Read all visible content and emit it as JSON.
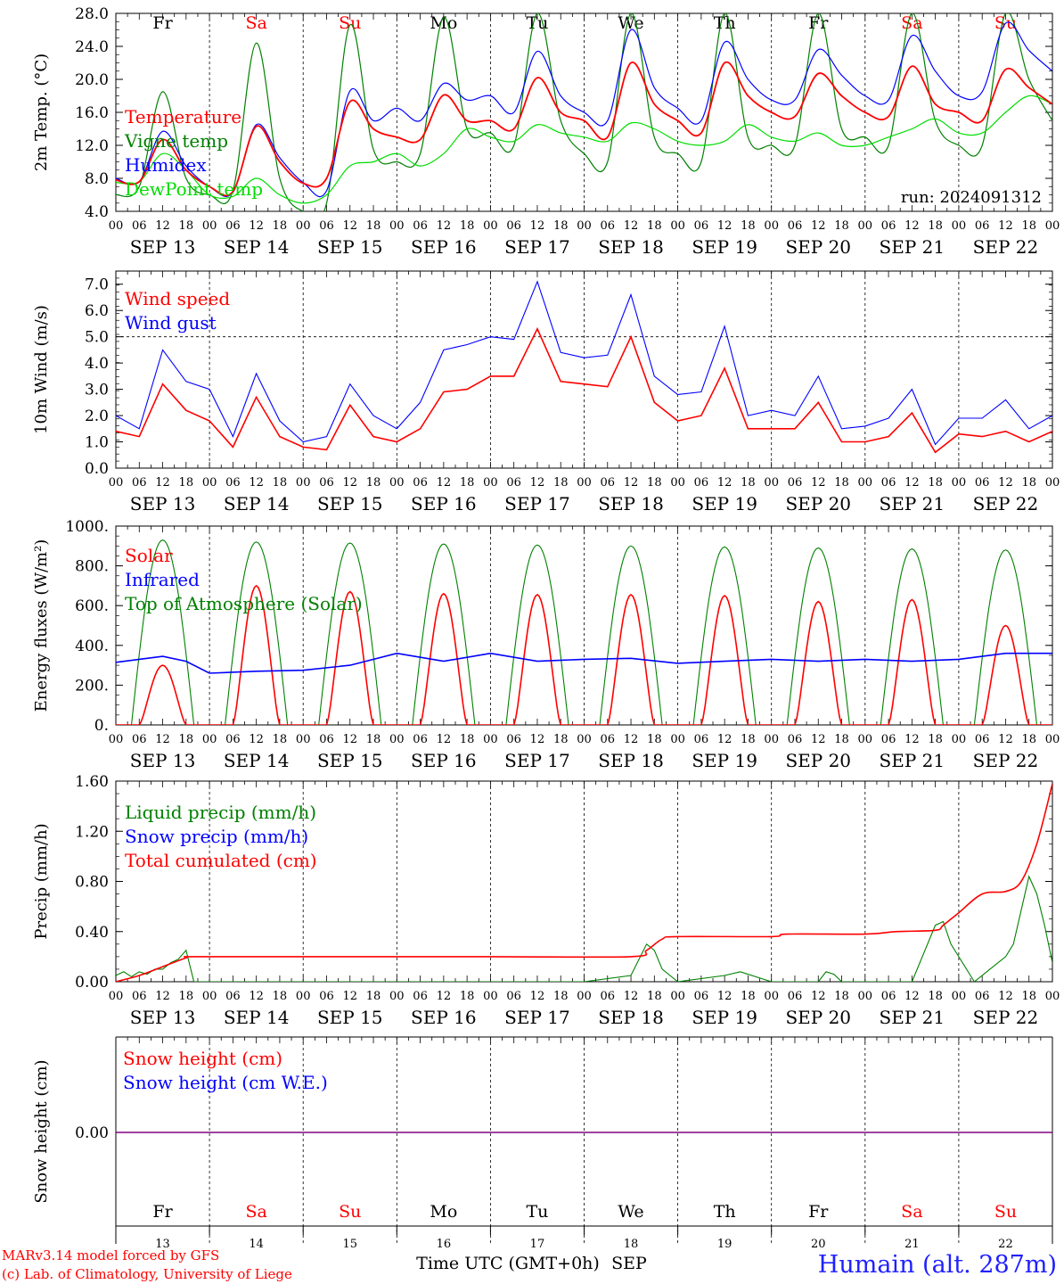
{
  "colors": {
    "red": "#ff0000",
    "green": "#008000",
    "blue": "#0000ff",
    "lightgreen": "#00dd00",
    "purple": "#800080",
    "weekend": "#ff0000",
    "weekday": "#000000",
    "footer_red": "#ff0000",
    "station_blue": "#2020ff"
  },
  "days": [
    {
      "short": "Fr",
      "date_label": "SEP 13",
      "num": "13",
      "weekend": false
    },
    {
      "short": "Sa",
      "date_label": "SEP 14",
      "num": "14",
      "weekend": true
    },
    {
      "short": "Su",
      "date_label": "SEP 15",
      "num": "15",
      "weekend": true
    },
    {
      "short": "Mo",
      "date_label": "SEP 16",
      "num": "16",
      "weekend": false
    },
    {
      "short": "Tu",
      "date_label": "SEP 17",
      "num": "17",
      "weekend": false
    },
    {
      "short": "We",
      "date_label": "SEP 18",
      "num": "18",
      "weekend": false
    },
    {
      "short": "Th",
      "date_label": "SEP 19",
      "num": "19",
      "weekend": false
    },
    {
      "short": "Fr",
      "date_label": "SEP 20",
      "num": "20",
      "weekend": false
    },
    {
      "short": "Sa",
      "date_label": "SEP 21",
      "num": "21",
      "weekend": true
    },
    {
      "short": "Su",
      "date_label": "SEP 22",
      "num": "22",
      "weekend": true
    }
  ],
  "hour_ticks": [
    "00",
    "06",
    "12",
    "18"
  ],
  "hour_ticks_end": "00",
  "run_label": "run: 2024091312",
  "footer": {
    "model": "MARv3.14 model forced by GFS",
    "lab": "(c) Lab. of Climatology, University of Liege",
    "xlabel": "Time UTC (GMT+0h)",
    "month": "SEP",
    "station": "Humain (alt. 287m)"
  },
  "chart_data": [
    {
      "type": "line",
      "name": "temperature",
      "ylabel": "2m Temp. (°C)",
      "ylim": [
        4,
        28
      ],
      "yticks": [
        "4.0",
        "8.0",
        "12.0",
        "16.0",
        "20.0",
        "24.0",
        "28.0"
      ],
      "x_hours": [
        0,
        6,
        12,
        18,
        24,
        30,
        36,
        42,
        48,
        54,
        60,
        66,
        72,
        78,
        84,
        90,
        96,
        102,
        108,
        114,
        120,
        126,
        132,
        138,
        144,
        150,
        156,
        162,
        168,
        174,
        180,
        186,
        192,
        198,
        204,
        210,
        216,
        222,
        228,
        234,
        240
      ],
      "series": [
        {
          "name": "Temperature",
          "color": "red",
          "values": [
            7.8,
            7.6,
            12.7,
            9.0,
            7.0,
            6.4,
            14.3,
            10.0,
            7.4,
            8.0,
            17.3,
            14.0,
            13.0,
            12.7,
            18.1,
            15.0,
            15.0,
            14.0,
            20.2,
            16.0,
            15.0,
            13.0,
            22.0,
            17.0,
            15.0,
            13.5,
            22.0,
            18.0,
            16.0,
            15.5,
            20.7,
            18.0,
            16.0,
            15.5,
            21.6,
            17.0,
            16.0,
            15.0,
            21.2,
            19.0,
            17.0
          ]
        },
        {
          "name": "Vigne temp",
          "color": "green",
          "values": [
            6.0,
            7.0,
            18.5,
            8.0,
            6.0,
            6.5,
            24.4,
            8.0,
            4.0,
            5.0,
            26.6,
            11.5,
            10.0,
            11.0,
            27.5,
            14.0,
            13.5,
            12.0,
            28.0,
            15.0,
            11.0,
            10.0,
            28.0,
            13.0,
            11.0,
            10.0,
            28.0,
            13.0,
            12.0,
            12.0,
            28.0,
            14.0,
            13.0,
            12.0,
            28.0,
            15.0,
            12.0,
            12.0,
            28.0,
            20.0,
            15.0
          ]
        },
        {
          "name": "Humidex",
          "color": "blue",
          "values": [
            8.0,
            7.6,
            13.7,
            9.5,
            7.0,
            6.3,
            14.5,
            10.5,
            7.5,
            6.5,
            18.6,
            15.0,
            16.5,
            15.0,
            19.5,
            17.5,
            18.0,
            16.0,
            23.4,
            18.0,
            16.0,
            15.0,
            26.0,
            19.0,
            16.5,
            15.0,
            24.5,
            20.0,
            17.5,
            17.5,
            23.6,
            20.5,
            18.0,
            17.5,
            25.3,
            21.0,
            18.0,
            18.5,
            26.8,
            23.5,
            21.0
          ]
        },
        {
          "name": "DewPoint temp",
          "color": "lightgreen",
          "values": [
            7.5,
            7.6,
            11.0,
            9.0,
            6.0,
            5.8,
            8.0,
            6.0,
            5.0,
            6.0,
            9.5,
            10.0,
            11.0,
            9.5,
            11.0,
            14.0,
            13.0,
            12.5,
            14.5,
            13.5,
            13.0,
            12.5,
            14.7,
            14.0,
            12.5,
            12.0,
            12.5,
            14.5,
            13.0,
            12.5,
            13.5,
            12.0,
            12.0,
            13.0,
            14.0,
            15.2,
            13.5,
            13.5,
            16.0,
            18.0,
            17.0
          ]
        }
      ]
    },
    {
      "type": "line",
      "name": "wind",
      "ylabel": "10m Wind (m/s)",
      "ylim": [
        0,
        7.5
      ],
      "reference_line": 5.0,
      "yticks": [
        "0.0",
        "1.0",
        "2.0",
        "3.0",
        "4.0",
        "5.0",
        "6.0",
        "7.0"
      ],
      "x_hours": [
        0,
        6,
        12,
        18,
        24,
        30,
        36,
        42,
        48,
        54,
        60,
        66,
        72,
        78,
        84,
        90,
        96,
        102,
        108,
        114,
        120,
        126,
        132,
        138,
        144,
        150,
        156,
        162,
        168,
        174,
        180,
        186,
        192,
        198,
        204,
        210,
        216,
        222,
        228,
        234,
        240
      ],
      "series": [
        {
          "name": "Wind speed",
          "color": "red",
          "values": [
            1.4,
            1.2,
            3.2,
            2.2,
            1.8,
            0.8,
            2.7,
            1.2,
            0.8,
            0.7,
            2.4,
            1.2,
            1.0,
            1.5,
            2.9,
            3.0,
            3.5,
            3.5,
            5.3,
            3.3,
            3.2,
            3.1,
            5.0,
            2.5,
            1.8,
            2.0,
            3.8,
            1.5,
            1.5,
            1.5,
            2.5,
            1.0,
            1.0,
            1.2,
            2.1,
            0.6,
            1.3,
            1.2,
            1.4,
            1.0,
            1.4
          ]
        },
        {
          "name": "Wind gust",
          "color": "blue",
          "values": [
            2.0,
            1.5,
            4.5,
            3.3,
            3.0,
            1.2,
            3.6,
            1.8,
            1.0,
            1.2,
            3.2,
            2.0,
            1.5,
            2.5,
            4.5,
            4.7,
            5.0,
            4.9,
            7.1,
            4.4,
            4.2,
            4.3,
            6.6,
            3.5,
            2.8,
            2.9,
            5.4,
            2.0,
            2.2,
            2.0,
            3.5,
            1.5,
            1.6,
            1.9,
            3.0,
            0.9,
            1.9,
            1.9,
            2.6,
            1.5,
            2.0
          ]
        }
      ]
    },
    {
      "type": "line",
      "name": "energy",
      "ylabel": "Energy fluxes (W/m²)",
      "ylim": [
        0,
        1000
      ],
      "yticks": [
        "0.",
        "200.",
        "400.",
        "600.",
        "800.",
        "1000."
      ],
      "series": [
        {
          "name": "Solar",
          "color": "red",
          "peaks": [
            300,
            700,
            670,
            660,
            655,
            655,
            650,
            620,
            630,
            500
          ]
        },
        {
          "name": "Infrared",
          "color": "blue",
          "x_hours": [
            0,
            6,
            12,
            18,
            24,
            36,
            48,
            60,
            72,
            84,
            96,
            108,
            120,
            132,
            144,
            156,
            168,
            180,
            192,
            204,
            216,
            228,
            240
          ],
          "values": [
            315,
            330,
            345,
            320,
            260,
            270,
            275,
            300,
            360,
            320,
            360,
            320,
            330,
            335,
            310,
            320,
            330,
            320,
            330,
            320,
            330,
            360,
            360
          ]
        },
        {
          "name": "Top of Atmosphere (Solar)",
          "color": "green",
          "peaks": [
            930,
            920,
            915,
            910,
            905,
            900,
            895,
            890,
            885,
            880
          ]
        }
      ]
    },
    {
      "type": "line",
      "name": "precip",
      "ylabel": "Precip (mm/h)",
      "ylim": [
        0,
        1.6
      ],
      "yticks": [
        "0.00",
        "0.40",
        "0.80",
        "1.20",
        "1.60"
      ],
      "series": [
        {
          "name": "Liquid precip (mm/h)",
          "color": "green",
          "x_hours": [
            0,
            2,
            4,
            6,
            8,
            10,
            12,
            14,
            16,
            18,
            20,
            24,
            120,
            132,
            136,
            138,
            140,
            144,
            156,
            160,
            168,
            180,
            182,
            184,
            186,
            192,
            204,
            210,
            212,
            214,
            220,
            224,
            228,
            230,
            234,
            236,
            238,
            240
          ],
          "values": [
            0.05,
            0.08,
            0.04,
            0.08,
            0.06,
            0.1,
            0.1,
            0.15,
            0.18,
            0.25,
            0.0,
            0.0,
            0.0,
            0.05,
            0.3,
            0.25,
            0.1,
            0.0,
            0.05,
            0.08,
            0.0,
            0.0,
            0.08,
            0.06,
            0.0,
            0.0,
            0.0,
            0.45,
            0.48,
            0.3,
            0.0,
            0.1,
            0.2,
            0.3,
            0.84,
            0.7,
            0.45,
            0.15
          ]
        },
        {
          "name": "Snow precip (mm/h)",
          "color": "blue",
          "values": []
        },
        {
          "name": "Total cumulated (cm)",
          "color": "red",
          "x_hours": [
            0,
            6,
            12,
            18,
            20,
            48,
            96,
            132,
            136,
            140,
            144,
            168,
            172,
            192,
            200,
            210,
            212,
            216,
            222,
            228,
            232,
            236,
            240
          ],
          "values": [
            0.0,
            0.05,
            0.12,
            0.19,
            0.2,
            0.2,
            0.2,
            0.2,
            0.25,
            0.34,
            0.36,
            0.36,
            0.38,
            0.38,
            0.4,
            0.41,
            0.45,
            0.55,
            0.7,
            0.72,
            0.8,
            1.1,
            1.58
          ]
        }
      ]
    },
    {
      "type": "line",
      "name": "snow",
      "ylabel": "Snow height (cm)",
      "ylim": [
        -1,
        1
      ],
      "yticks": [
        "0.00"
      ],
      "series": [
        {
          "name": "Snow height (cm)",
          "color": "red",
          "values": [
            0,
            0
          ]
        },
        {
          "name": "Snow height (cm W.E.)",
          "color": "blue",
          "values": [
            0,
            0
          ]
        }
      ]
    }
  ]
}
